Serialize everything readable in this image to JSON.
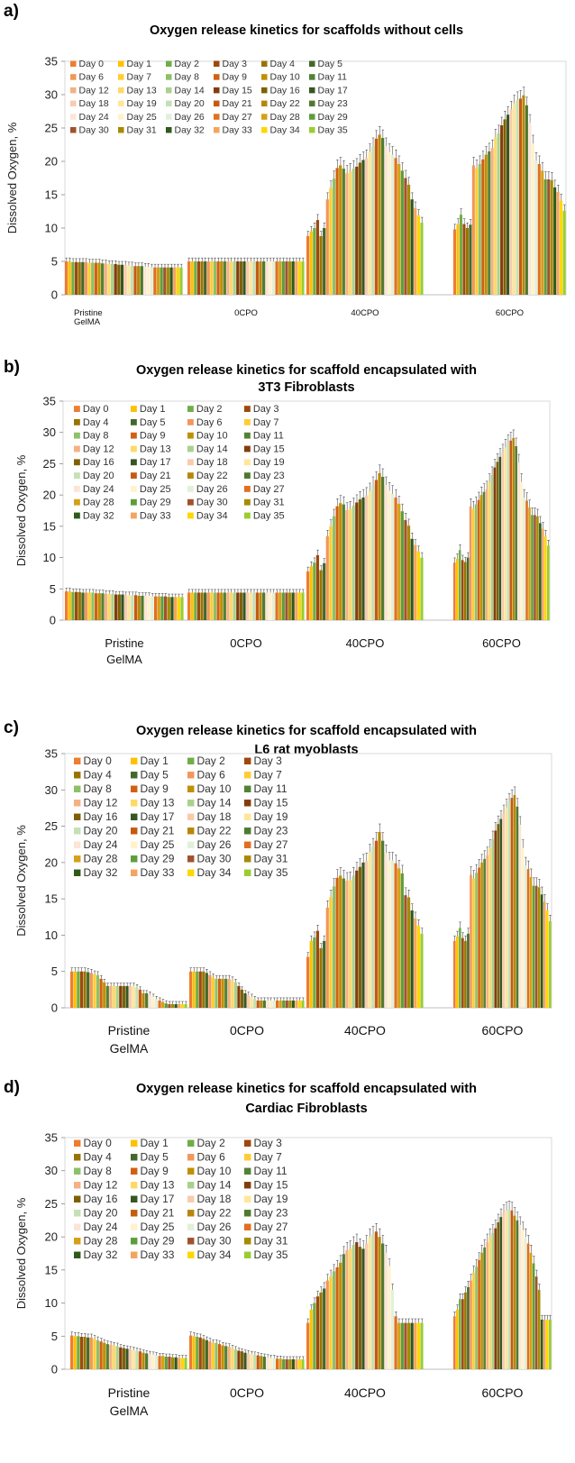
{
  "colors": {
    "palette": [
      "#ED7D31",
      "#FFC000",
      "#70AD47",
      "#9E480E",
      "#997300",
      "#43682B",
      "#F1975A",
      "#FFCD33",
      "#8CC168",
      "#D26012",
      "#BF9000",
      "#548235",
      "#F4B183",
      "#FFD966",
      "#A9D18E",
      "#843C0C",
      "#7F6000",
      "#375623",
      "#F8CBAD",
      "#FFE699",
      "#C5E0B4",
      "#C55A11",
      "#B8860B",
      "#4E7A2F",
      "#FBE5D6",
      "#FFF2CC",
      "#E2F0D9",
      "#E07020",
      "#D4A017",
      "#5E9E3A",
      "#A0522D",
      "#A68B00",
      "#2E5A1C",
      "#F4A460",
      "#FFD700",
      "#9ACD32"
    ]
  },
  "legend_labels": [
    "Day 0",
    "Day 1",
    "Day 2",
    "Day 3",
    "Day 4",
    "Day 5",
    "Day 6",
    "Day 7",
    "Day 8",
    "Day 9",
    "Day 10",
    "Day 11",
    "Day 12",
    "Day 13",
    "Day 14",
    "Day 15",
    "Day 16",
    "Day 17",
    "Day 18",
    "Day 19",
    "Day 20",
    "Day 21",
    "Day 22",
    "Day 23",
    "Day 24",
    "Day 25",
    "Day 26",
    "Day 27",
    "Day 28",
    "Day 29",
    "Day 30",
    "Day 31",
    "Day 32",
    "Day 33",
    "Day 34",
    "Day 35"
  ],
  "chart_data": [
    {
      "panel": "a)",
      "type": "bar",
      "title_lines": [
        "Oxygen release kinetics for scaffolds without cells"
      ],
      "ylabel": "Dissolved Oxygen, %",
      "ylim": [
        0,
        35
      ],
      "yticks": [
        0,
        5,
        10,
        15,
        20,
        25,
        30,
        35
      ],
      "categories": [
        [
          "Pristine",
          "GelMA"
        ],
        [
          "0CPO"
        ],
        [
          "40CPO"
        ],
        [
          "60CPO"
        ]
      ],
      "legend_columns": 6,
      "series_note": "36 series (Day 0 - Day 35) per category",
      "values": [
        [
          5.0,
          5.0,
          4.9,
          4.9,
          4.9,
          4.9,
          4.9,
          4.8,
          4.8,
          4.8,
          4.8,
          4.7,
          4.7,
          4.6,
          4.6,
          4.6,
          4.5,
          4.5,
          4.5,
          4.4,
          4.4,
          4.3,
          4.3,
          4.3,
          4.2,
          4.2,
          4.1,
          4.1,
          4.1,
          4.1,
          4.1,
          4.1,
          4.1,
          4.1,
          4.1,
          4.1
        ],
        [
          5.0,
          5.0,
          5.0,
          5.0,
          5.0,
          5.0,
          5.0,
          5.0,
          5.0,
          5.0,
          5.0,
          5.0,
          5.0,
          5.0,
          5.0,
          5.0,
          5.0,
          5.0,
          5.0,
          5.0,
          5.0,
          5.0,
          5.0,
          5.0,
          5.0,
          5.0,
          5.0,
          5.0,
          5.0,
          5.0,
          5.0,
          5.0,
          5.0,
          5.0,
          5.0,
          5.0
        ],
        [
          8.8,
          9.5,
          10.0,
          11.2,
          8.8,
          10.0,
          14.3,
          16.0,
          17.4,
          19.0,
          19.4,
          18.9,
          18.2,
          18.5,
          18.9,
          19.2,
          19.8,
          20.2,
          20.5,
          21.4,
          22.3,
          23.4,
          24.0,
          23.5,
          22.3,
          21.4,
          21.0,
          20.5,
          19.6,
          18.6,
          17.5,
          16.5,
          14.3,
          13.0,
          11.9,
          10.8
        ],
        [
          9.8,
          10.6,
          12.0,
          10.6,
          10.0,
          10.5,
          19.4,
          19.0,
          19.6,
          20.3,
          21.0,
          21.5,
          22.0,
          23.6,
          24.2,
          25.4,
          26.3,
          27.0,
          27.8,
          28.7,
          29.2,
          29.4,
          29.9,
          28.4,
          25.8,
          22.7,
          20.1,
          19.6,
          18.6,
          17.3,
          17.3,
          17.2,
          16.1,
          15.4,
          14.1,
          12.6
        ]
      ]
    },
    {
      "panel": "b)",
      "type": "bar",
      "title_lines": [
        "Oxygen release kinetics for scaffold encapsulated with",
        "3T3 Fibroblasts"
      ],
      "ylabel": "Dissolved Oxygen, %",
      "ylim": [
        0,
        35
      ],
      "yticks": [
        0,
        5,
        10,
        15,
        20,
        25,
        30,
        35
      ],
      "categories": [
        [
          "Pristine",
          "GelMA"
        ],
        [
          "0CPO"
        ],
        [
          "40CPO"
        ],
        [
          "60CPO"
        ]
      ],
      "legend_columns": 4,
      "series_note": "36 series (Day 0 - Day 35) per category",
      "values": [
        [
          4.6,
          4.6,
          4.5,
          4.5,
          4.5,
          4.4,
          4.4,
          4.4,
          4.4,
          4.3,
          4.3,
          4.3,
          4.2,
          4.2,
          4.2,
          4.1,
          4.1,
          4.1,
          4.0,
          4.0,
          4.0,
          4.0,
          3.9,
          3.9,
          3.9,
          3.9,
          3.8,
          3.8,
          3.8,
          3.8,
          3.8,
          3.7,
          3.7,
          3.7,
          3.7,
          3.7
        ],
        [
          4.4,
          4.4,
          4.4,
          4.4,
          4.4,
          4.4,
          4.4,
          4.4,
          4.4,
          4.4,
          4.4,
          4.4,
          4.4,
          4.4,
          4.4,
          4.4,
          4.4,
          4.4,
          4.4,
          4.4,
          4.4,
          4.4,
          4.4,
          4.4,
          4.4,
          4.4,
          4.4,
          4.4,
          4.4,
          4.4,
          4.4,
          4.4,
          4.4,
          4.4,
          4.4,
          4.4
        ],
        [
          7.8,
          8.6,
          9.2,
          10.4,
          8.0,
          9.1,
          13.4,
          15.0,
          16.6,
          18.2,
          18.7,
          18.5,
          17.6,
          17.8,
          18.3,
          18.8,
          19.3,
          19.6,
          19.9,
          20.6,
          21.6,
          22.4,
          23.5,
          22.9,
          21.6,
          20.7,
          20.2,
          19.6,
          18.6,
          17.4,
          16.0,
          15.1,
          13.0,
          12.0,
          11.0,
          10.0
        ],
        [
          9.2,
          9.8,
          11.2,
          9.6,
          9.3,
          10.0,
          18.2,
          17.8,
          18.5,
          19.2,
          20.0,
          20.5,
          20.9,
          22.1,
          23.2,
          24.4,
          25.3,
          26.1,
          26.8,
          27.6,
          28.3,
          28.7,
          29.1,
          27.8,
          25.2,
          22.1,
          19.6,
          19.1,
          18.0,
          16.8,
          16.8,
          16.6,
          15.5,
          14.6,
          13.4,
          11.9
        ]
      ]
    },
    {
      "panel": "c)",
      "type": "bar",
      "title_lines": [
        "Oxygen release kinetics for scaffold encapsulated with",
        "L6 rat myoblasts"
      ],
      "ylabel": "Dissolved Oxygen, %",
      "ylim": [
        0,
        35
      ],
      "yticks": [
        0,
        5,
        10,
        15,
        20,
        25,
        30,
        35
      ],
      "categories": [
        [
          "Pristine",
          "GelMA"
        ],
        [
          "0CPO"
        ],
        [
          "40CPO"
        ],
        [
          "60CPO"
        ]
      ],
      "legend_columns": 4,
      "series_note": "36 series (Day 0 - Day 35) per category",
      "values": [
        [
          5.0,
          5.0,
          5.0,
          5.0,
          5.0,
          4.9,
          4.8,
          4.6,
          4.5,
          4.0,
          3.5,
          3.0,
          3.0,
          3.0,
          3.0,
          3.0,
          3.0,
          3.0,
          3.0,
          3.0,
          2.8,
          2.5,
          2.0,
          2.0,
          1.8,
          1.5,
          1.2,
          1.0,
          0.8,
          0.6,
          0.5,
          0.5,
          0.5,
          0.5,
          0.5,
          0.5
        ],
        [
          5.0,
          5.0,
          5.0,
          5.0,
          5.0,
          4.8,
          4.5,
          4.2,
          4.0,
          4.0,
          4.0,
          4.0,
          4.0,
          3.8,
          3.5,
          3.0,
          2.5,
          2.0,
          1.8,
          1.5,
          1.2,
          1.0,
          1.0,
          1.0,
          1.0,
          1.0,
          1.0,
          1.0,
          1.0,
          1.0,
          1.0,
          1.0,
          1.0,
          1.0,
          1.0,
          1.0
        ],
        [
          7.0,
          9.2,
          9.7,
          10.6,
          8.2,
          9.2,
          13.8,
          15.2,
          16.7,
          17.9,
          18.2,
          17.8,
          17.5,
          17.6,
          18.2,
          18.9,
          19.4,
          20.0,
          20.2,
          21.4,
          22.2,
          23.0,
          24.2,
          23.0,
          21.3,
          20.3,
          20.3,
          19.9,
          19.2,
          18.5,
          15.5,
          15.2,
          13.4,
          12.3,
          11.3,
          10.2
        ],
        [
          9.2,
          9.8,
          11.0,
          9.6,
          9.2,
          10.2,
          18.3,
          17.8,
          18.6,
          19.3,
          20.0,
          20.5,
          21.0,
          22.0,
          23.2,
          24.4,
          25.3,
          26.0,
          26.8,
          27.6,
          28.4,
          28.9,
          29.3,
          27.7,
          25.2,
          22.0,
          19.6,
          19.1,
          18.0,
          16.8,
          16.8,
          16.6,
          15.6,
          14.6,
          13.4,
          11.9
        ]
      ]
    },
    {
      "panel": "d)",
      "type": "bar",
      "title_lines": [
        "Oxygen release kinetics for scaffold encapsulated with",
        "Cardiac Fibroblasts"
      ],
      "ylabel": "Dissolved Oxygen, %",
      "ylim": [
        0,
        35
      ],
      "yticks": [
        0,
        5,
        10,
        15,
        20,
        25,
        30,
        35
      ],
      "categories": [
        [
          "Pristine",
          "GelMA"
        ],
        [
          "0CPO"
        ],
        [
          "40CPO"
        ],
        [
          "60CPO"
        ]
      ],
      "legend_columns": 4,
      "series_note": "36 series (Day 0 - Day 35) per category",
      "values": [
        [
          5.1,
          5.0,
          5.0,
          4.9,
          4.9,
          4.8,
          4.8,
          4.6,
          4.4,
          4.2,
          4.0,
          3.8,
          3.7,
          3.6,
          3.5,
          3.3,
          3.2,
          3.1,
          3.0,
          2.9,
          2.8,
          2.7,
          2.5,
          2.4,
          2.3,
          2.2,
          2.1,
          2.0,
          2.0,
          1.9,
          1.9,
          1.8,
          1.8,
          1.7,
          1.7,
          1.7
        ],
        [
          5.1,
          5.0,
          4.9,
          4.8,
          4.6,
          4.4,
          4.2,
          4.0,
          4.0,
          3.8,
          3.6,
          3.5,
          3.4,
          3.2,
          3.0,
          2.8,
          2.7,
          2.5,
          2.4,
          2.3,
          2.2,
          2.1,
          2.0,
          1.9,
          1.8,
          1.7,
          1.7,
          1.6,
          1.6,
          1.5,
          1.5,
          1.5,
          1.5,
          1.5,
          1.5,
          1.5
        ],
        [
          7.0,
          9.0,
          10.0,
          11.0,
          11.6,
          12.2,
          13.4,
          14.0,
          14.8,
          15.4,
          16.1,
          17.4,
          18.0,
          18.2,
          18.8,
          19.2,
          18.5,
          18.2,
          19.0,
          20.0,
          20.4,
          20.8,
          20.0,
          19.0,
          17.6,
          15.6,
          12.0,
          8.0,
          7.0,
          7.0,
          7.0,
          7.0,
          7.0,
          7.0,
          7.0,
          7.0
        ],
        [
          8.0,
          9.0,
          10.6,
          10.6,
          11.6,
          12.4,
          13.4,
          14.6,
          15.5,
          16.5,
          17.6,
          18.4,
          19.2,
          20.0,
          20.6,
          21.3,
          22.2,
          23.0,
          23.6,
          24.0,
          24.2,
          24.0,
          23.2,
          22.5,
          21.8,
          21.0,
          20.0,
          19.0,
          17.6,
          16.0,
          14.0,
          12.0,
          7.5,
          7.5,
          7.5,
          7.5
        ]
      ]
    }
  ]
}
